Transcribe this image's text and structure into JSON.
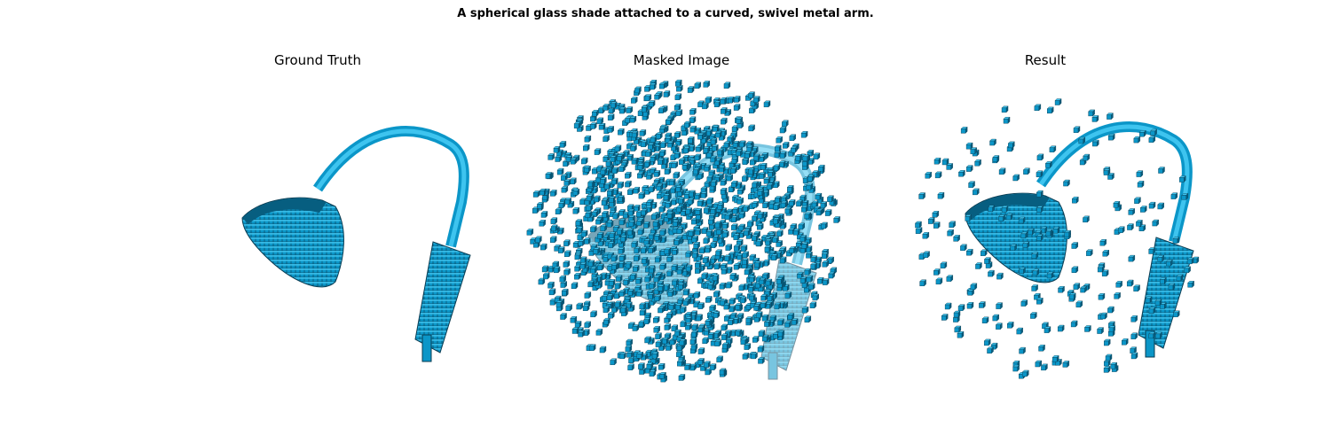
{
  "figure": {
    "title": "A spherical glass shade attached to a curved, swivel metal arm."
  },
  "panels": [
    {
      "id": "ground-truth",
      "title": "Ground Truth"
    },
    {
      "id": "masked-image",
      "title": "Masked Image"
    },
    {
      "id": "result",
      "title": "Result"
    }
  ],
  "colors": {
    "voxel_top": "#3ec4ef",
    "voxel_front": "#0b96c8",
    "voxel_side": "#075e80",
    "voxel_edge": "#0a3c52",
    "background": "#ffffff"
  }
}
